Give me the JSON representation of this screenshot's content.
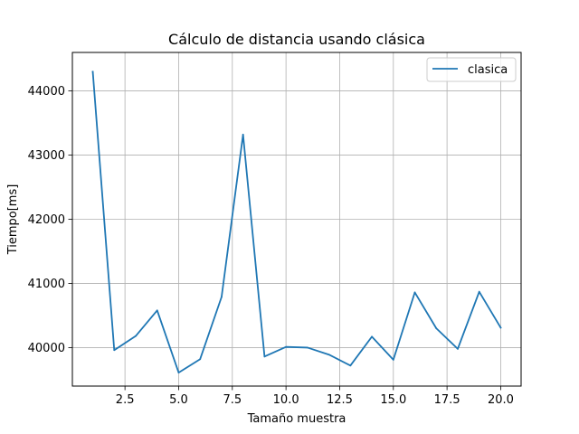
{
  "chart_data": {
    "type": "line",
    "title": "Cálculo de distancia usando clásica",
    "xlabel": "Tamaño muestra",
    "ylabel": "Tiempo[ms]",
    "xlim": [
      0.05,
      20.95
    ],
    "ylim": [
      39400,
      44600
    ],
    "xticks": [
      2.5,
      5.0,
      7.5,
      10.0,
      12.5,
      15.0,
      17.5,
      20.0
    ],
    "xtick_labels": [
      "2.5",
      "5.0",
      "7.5",
      "10.0",
      "12.5",
      "15.0",
      "17.5",
      "20.0"
    ],
    "yticks": [
      40000,
      41000,
      42000,
      43000,
      44000
    ],
    "ytick_labels": [
      "40000",
      "41000",
      "42000",
      "43000",
      "44000"
    ],
    "grid": true,
    "legend_position": "top-right",
    "series": [
      {
        "name": "clasica",
        "color": "#1f77b4",
        "x": [
          1,
          2,
          3,
          4,
          5,
          6,
          7,
          8,
          9,
          10,
          11,
          12,
          13,
          14,
          15,
          16,
          17,
          18,
          19,
          20
        ],
        "y": [
          44300,
          39960,
          40180,
          40580,
          39610,
          39820,
          40790,
          43320,
          39860,
          40010,
          40000,
          39890,
          39720,
          40170,
          39810,
          40860,
          40300,
          39980,
          40870,
          40310
        ]
      }
    ]
  }
}
